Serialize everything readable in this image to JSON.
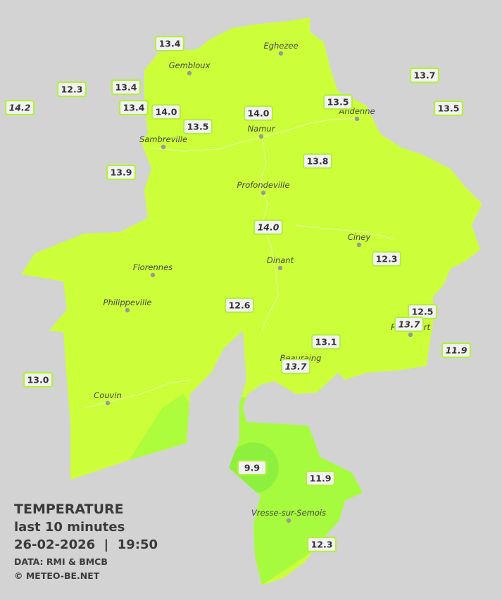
{
  "legend": {
    "title": "TEMPERATURE",
    "subtitle": "last 10 minutes",
    "datetime": "26-02-2026  |  19:50",
    "source": "DATA: RMI & BMCB",
    "credit": "© METEO-BE.NET"
  },
  "cities": [
    {
      "name": "Eghezee"
    },
    {
      "name": "Gembloux"
    },
    {
      "name": "Andenne"
    },
    {
      "name": "Namur"
    },
    {
      "name": "Sambreville"
    },
    {
      "name": "Profondeville"
    },
    {
      "name": "Ciney"
    },
    {
      "name": "Dinant"
    },
    {
      "name": "Florennes"
    },
    {
      "name": "Philippeville"
    },
    {
      "name": "Rochefort"
    },
    {
      "name": "Beauraing"
    },
    {
      "name": "Couvin"
    },
    {
      "name": "Vresse-sur-Semois"
    }
  ],
  "stations": [
    {
      "value": "13.4"
    },
    {
      "value": "12.3"
    },
    {
      "value": "14.2"
    },
    {
      "value": "13.4"
    },
    {
      "value": "13.4"
    },
    {
      "value": "14.0"
    },
    {
      "value": "13.5"
    },
    {
      "value": "14.0"
    },
    {
      "value": "13.5"
    },
    {
      "value": "13.7"
    },
    {
      "value": "13.5"
    },
    {
      "value": "13.9"
    },
    {
      "value": "13.8"
    },
    {
      "value": "14.0"
    },
    {
      "value": "12.3"
    },
    {
      "value": "12.6"
    },
    {
      "value": "12.5"
    },
    {
      "value": "13.7"
    },
    {
      "value": "11.9"
    },
    {
      "value": "13.1"
    },
    {
      "value": "13.7"
    },
    {
      "value": "13.0"
    },
    {
      "value": "9.9"
    },
    {
      "value": "11.9"
    },
    {
      "value": "12.3"
    }
  ]
}
